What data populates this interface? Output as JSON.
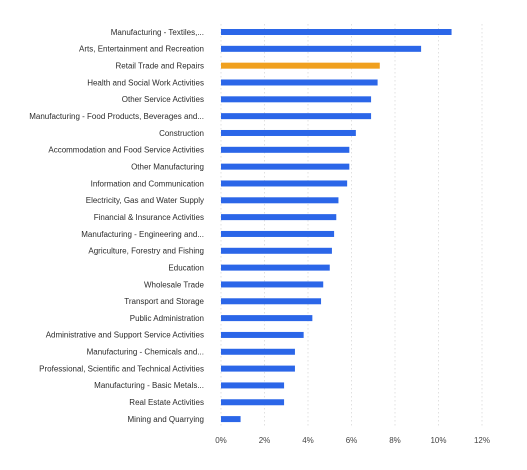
{
  "chart_data": {
    "type": "bar",
    "orientation": "horizontal",
    "categories": [
      "Manufacturing - Textiles,...",
      "Arts, Entertainment and Recreation",
      "Retail Trade and Repairs",
      "Health and Social Work Activities",
      "Other Service Activities",
      "Manufacturing - Food Products, Beverages and...",
      "Construction",
      "Accommodation and Food Service Activities",
      "Other Manufacturing",
      "Information and Communication",
      "Electricity, Gas and Water Supply",
      "Financial & Insurance Activities",
      "Manufacturing - Engineering and...",
      "Agriculture, Forestry and Fishing",
      "Education",
      "Wholesale Trade",
      "Transport and Storage",
      "Public Administration",
      "Administrative and Support Service Activities",
      "Manufacturing - Chemicals and...",
      "Professional, Scientific and Technical Activities",
      "Manufacturing - Basic Metals...",
      "Real Estate Activities",
      "Mining and Quarrying"
    ],
    "values": [
      10.6,
      9.2,
      7.3,
      7.2,
      6.9,
      6.9,
      6.2,
      5.9,
      5.9,
      5.8,
      5.4,
      5.3,
      5.2,
      5.1,
      5.0,
      4.7,
      4.6,
      4.2,
      3.8,
      3.4,
      3.4,
      2.9,
      2.9,
      0.9
    ],
    "highlight_index": 2,
    "xlim": [
      0,
      12
    ],
    "xticks": [
      0,
      2,
      4,
      6,
      8,
      10,
      12
    ],
    "xtick_labels": [
      "0%",
      "2%",
      "4%",
      "6%",
      "8%",
      "10%",
      "12%"
    ],
    "grid": "vertical dotted",
    "legend": "none",
    "colors": {
      "bar": "#2b66e8",
      "highlight": "#f0a01e",
      "grid": "#d9d9d9",
      "label": "#2b2b2b"
    }
  }
}
